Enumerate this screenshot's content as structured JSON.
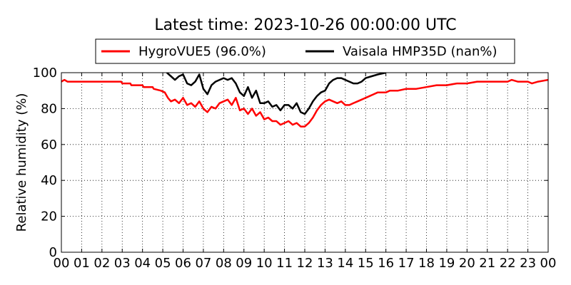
{
  "chart_data": {
    "type": "line",
    "title": "Latest time: 2023-10-26 00:00:00 UTC",
    "ylabel": "Relative humidity (%)",
    "xlabel": "",
    "xlim": [
      0,
      24
    ],
    "ylim": [
      0,
      100
    ],
    "grid": true,
    "legend_position": "top",
    "x_tick_labels": [
      "00",
      "01",
      "02",
      "03",
      "04",
      "05",
      "06",
      "07",
      "08",
      "09",
      "10",
      "11",
      "12",
      "13",
      "14",
      "15",
      "16",
      "17",
      "18",
      "19",
      "20",
      "21",
      "22",
      "23",
      "00"
    ],
    "y_ticks": [
      0,
      20,
      40,
      60,
      80,
      100
    ],
    "series": [
      {
        "name": "HygroVUE5 (96.0%)",
        "color": "#ff0000",
        "x": [
          0.0,
          0.15,
          0.3,
          1,
          2,
          2.95,
          3.0,
          3.4,
          3.45,
          4.0,
          4.05,
          4.5,
          4.55,
          4.9,
          5.1,
          5.25,
          5.4,
          5.6,
          5.8,
          6.0,
          6.2,
          6.4,
          6.6,
          6.8,
          7.0,
          7.2,
          7.4,
          7.6,
          7.8,
          8.0,
          8.2,
          8.4,
          8.6,
          8.8,
          9.0,
          9.2,
          9.4,
          9.6,
          9.8,
          10.0,
          10.2,
          10.4,
          10.6,
          10.8,
          11.0,
          11.2,
          11.4,
          11.6,
          11.8,
          12.0,
          12.2,
          12.4,
          12.6,
          12.8,
          13.0,
          13.2,
          13.4,
          13.6,
          13.8,
          14.0,
          14.2,
          14.4,
          14.6,
          14.8,
          15.0,
          15.2,
          15.4,
          15.6,
          15.8,
          16.0,
          16.2,
          16.6,
          17.0,
          17.5,
          18.0,
          18.5,
          19.0,
          19.5,
          20.0,
          20.5,
          21.0,
          21.5,
          22.0,
          22.2,
          22.5,
          23.0,
          23.2,
          23.5,
          24.0
        ],
        "values": [
          95,
          96,
          95,
          95,
          95,
          95,
          94,
          94,
          93,
          93,
          92,
          92,
          91,
          90,
          89,
          86,
          84,
          85,
          83,
          86,
          82,
          83,
          81,
          84,
          80,
          78,
          81,
          80,
          83,
          84,
          85,
          82,
          86,
          79,
          80,
          77,
          80,
          76,
          78,
          74,
          75,
          73,
          73,
          71,
          72,
          73,
          71,
          72,
          70,
          70,
          72,
          75,
          79,
          82,
          84,
          85,
          84,
          83,
          84,
          82,
          82,
          83,
          84,
          85,
          86,
          87,
          88,
          89,
          89,
          89,
          90,
          90,
          91,
          91,
          92,
          93,
          93,
          94,
          94,
          95,
          95,
          95,
          95,
          96,
          95,
          95,
          94,
          95,
          96
        ]
      },
      {
        "name": "Vaisala HMP35D (nan%)",
        "color": "#000000",
        "x": [
          5.2,
          5.4,
          5.6,
          5.8,
          6.0,
          6.2,
          6.4,
          6.6,
          6.8,
          7.0,
          7.2,
          7.4,
          7.6,
          7.8,
          8.0,
          8.2,
          8.4,
          8.6,
          8.8,
          9.0,
          9.2,
          9.4,
          9.6,
          9.8,
          10.0,
          10.2,
          10.4,
          10.6,
          10.8,
          11.0,
          11.2,
          11.4,
          11.6,
          11.8,
          12.0,
          12.2,
          12.4,
          12.6,
          12.8,
          13.0,
          13.2,
          13.4,
          13.6,
          13.8,
          14.0,
          14.2,
          14.4,
          14.6,
          14.8,
          15.0,
          15.3,
          15.6,
          16.0
        ],
        "values": [
          100,
          98,
          96,
          98,
          99,
          94,
          93,
          95,
          99,
          91,
          88,
          93,
          95,
          96,
          97,
          96,
          97,
          94,
          89,
          87,
          92,
          86,
          90,
          83,
          83,
          84,
          81,
          82,
          79,
          82,
          82,
          80,
          83,
          78,
          77,
          80,
          84,
          87,
          89,
          90,
          94,
          96,
          97,
          97,
          96,
          95,
          94,
          94,
          95,
          97,
          98,
          99,
          100
        ]
      }
    ]
  }
}
